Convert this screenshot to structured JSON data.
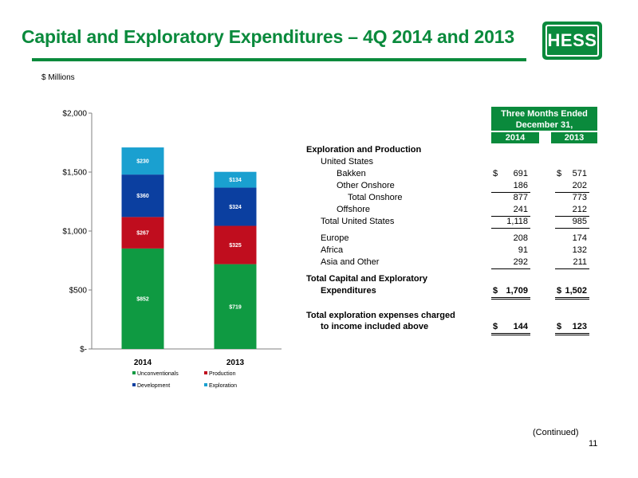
{
  "slide": {
    "title": "Capital and Exploratory Expenditures – 4Q 2014 and 2013",
    "units": "$ Millions",
    "continued": "(Continued)",
    "page_number": "11",
    "logo_text": "HESS",
    "accent_color": "#0a8a3c"
  },
  "chart_data": {
    "type": "bar",
    "stacked": true,
    "categories": [
      "2014",
      "2013"
    ],
    "series": [
      {
        "name": "Unconventionals",
        "color": "#0f9a42",
        "values": [
          852,
          719
        ],
        "labels": [
          "$852",
          "$719"
        ]
      },
      {
        "name": "Production",
        "color": "#c00d1e",
        "values": [
          267,
          325
        ],
        "labels": [
          "$267",
          "$325"
        ]
      },
      {
        "name": "Development",
        "color": "#0b3fa0",
        "values": [
          360,
          324
        ],
        "labels": [
          "$360",
          "$324"
        ]
      },
      {
        "name": "Exploration",
        "color": "#1aa0d0",
        "values": [
          230,
          134
        ],
        "labels": [
          "$230",
          "$134"
        ]
      }
    ],
    "y_ticks": [
      {
        "value": 0,
        "label": "$-"
      },
      {
        "value": 500,
        "label": "$500"
      },
      {
        "value": 1000,
        "label": "$1,000"
      },
      {
        "value": 1500,
        "label": "$1,500"
      },
      {
        "value": 2000,
        "label": "$2,000"
      }
    ],
    "ylim": [
      0,
      2000
    ],
    "grid": false,
    "legend_position": "bottom"
  },
  "table": {
    "header": {
      "period": "Three Months Ended",
      "date": "December 31,",
      "col1": "2014",
      "col2": "2013"
    },
    "rows": [
      {
        "label": "Exploration and Production",
        "bold": true,
        "indent": 0,
        "v1": "",
        "v2": ""
      },
      {
        "label": "United States",
        "indent": 1,
        "v1": "",
        "v2": ""
      },
      {
        "label": "Bakken",
        "indent": 2,
        "dollar": true,
        "v1": "691",
        "v2": "571"
      },
      {
        "label": "Other Onshore",
        "indent": 2,
        "v1": "186",
        "v2": "202",
        "underline": true
      },
      {
        "label": "Total Onshore",
        "indent": 3,
        "v1": "877",
        "v2": "773"
      },
      {
        "label": "Offshore",
        "indent": 2,
        "v1": "241",
        "v2": "212",
        "underline": true
      },
      {
        "label": "Total United States",
        "indent": 1,
        "v1": "1,118",
        "v2": "985",
        "underline": true
      },
      {
        "label": "Europe",
        "indent": 1,
        "v1": "208",
        "v2": "174"
      },
      {
        "label": "Africa",
        "indent": 1,
        "v1": "91",
        "v2": "132"
      },
      {
        "label": "Asia and Other",
        "indent": 1,
        "v1": "292",
        "v2": "211",
        "underline": true
      },
      {
        "label": "Total Capital and Exploratory",
        "bold": true,
        "indent": 0,
        "v1": "",
        "v2": ""
      },
      {
        "label": "Expenditures",
        "bold": true,
        "indent": 1,
        "dollar": true,
        "v1": "1,709",
        "v2": "1,502",
        "double": true
      },
      {
        "label": "Total exploration expenses charged",
        "bold": true,
        "indent": 0,
        "v1": "",
        "v2": ""
      },
      {
        "label": "to income included above",
        "bold": true,
        "indent": 1,
        "dollar": true,
        "v1": "144",
        "v2": "123",
        "double": true
      }
    ],
    "dollar_sign": "$"
  }
}
